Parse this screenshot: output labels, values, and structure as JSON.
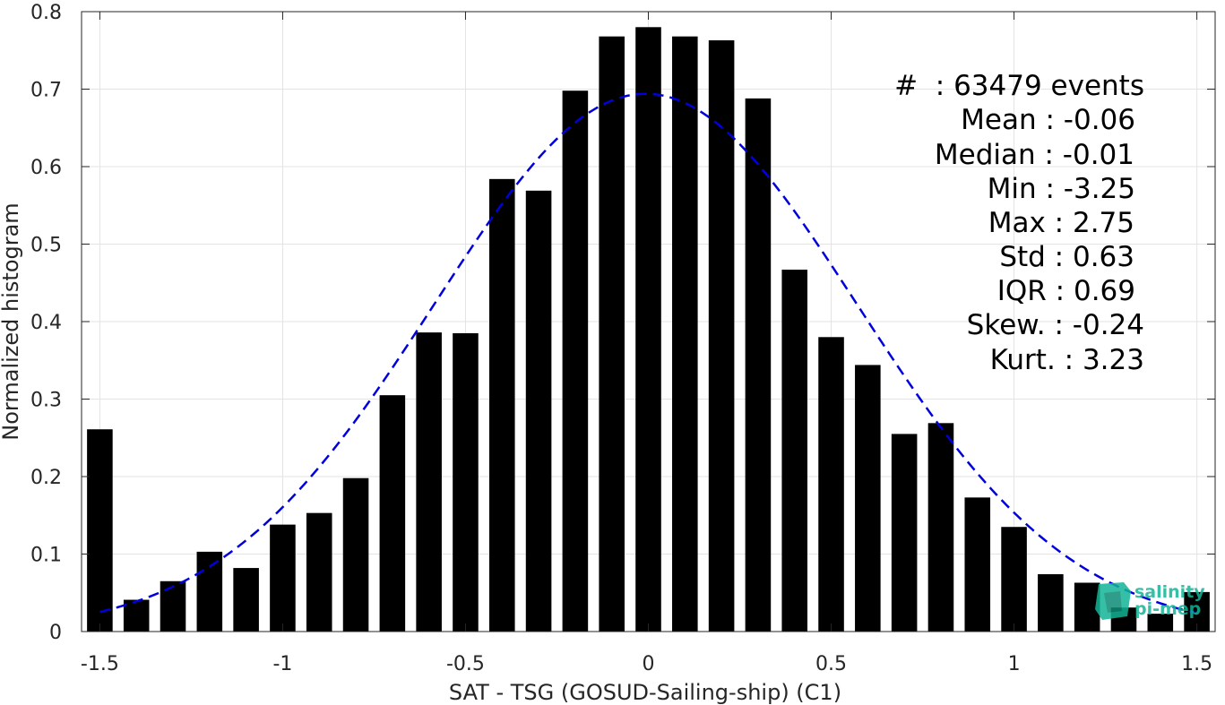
{
  "chart_data": {
    "type": "bar",
    "xlabel": "SAT - TSG (GOSUD-Sailing-ship) (C1)",
    "ylabel": "Normalized histogram",
    "xlim": [
      -1.55,
      1.55
    ],
    "ylim": [
      0,
      0.8
    ],
    "xticks": [
      -1.5,
      -1,
      -0.5,
      0,
      0.5,
      1,
      1.5
    ],
    "xtick_labels": [
      "-1.5",
      "-1",
      "-0.5",
      "0",
      "0.5",
      "1",
      "1.5"
    ],
    "yticks": [
      0,
      0.1,
      0.2,
      0.3,
      0.4,
      0.5,
      0.6,
      0.7,
      0.8
    ],
    "ytick_labels": [
      "0",
      "0.1",
      "0.2",
      "0.3",
      "0.4",
      "0.5",
      "0.6",
      "0.7",
      "0.8"
    ],
    "grid": true,
    "bar_width": 0.07,
    "bars": {
      "x": [
        -1.5,
        -1.4,
        -1.3,
        -1.2,
        -1.1,
        -1.0,
        -0.9,
        -0.8,
        -0.7,
        -0.6,
        -0.5,
        -0.4,
        -0.3,
        -0.2,
        -0.1,
        0.0,
        0.1,
        0.2,
        0.3,
        0.4,
        0.5,
        0.6,
        0.7,
        0.8,
        0.9,
        1.0,
        1.1,
        1.2,
        1.3,
        1.4,
        1.5
      ],
      "values": [
        0.261,
        0.041,
        0.065,
        0.103,
        0.082,
        0.138,
        0.153,
        0.198,
        0.305,
        0.386,
        0.385,
        0.584,
        0.569,
        0.698,
        0.768,
        0.78,
        0.768,
        0.763,
        0.688,
        0.467,
        0.38,
        0.344,
        0.255,
        0.269,
        0.173,
        0.135,
        0.074,
        0.063,
        0.031,
        0.023,
        0.051
      ],
      "color": "#000000"
    },
    "fit_curve": {
      "type": "gaussian",
      "mean": -0.0075,
      "std": 0.58,
      "peak": 0.694,
      "x_range": [
        -1.5,
        1.5
      ],
      "color": "#0000dd",
      "style": "dashed"
    },
    "stats_lines": [
      "#  : 63479 events",
      "Mean : -0.06",
      "Median : -0.01",
      "Min : -3.25",
      "Max : 2.75",
      "Std : 0.63",
      "IQR : 0.69",
      "Skew. : -0.24",
      "Kurt. : 3.23"
    ],
    "logo": {
      "line1": "salinity",
      "line2": "pi-mep",
      "color": "#12b597"
    }
  }
}
